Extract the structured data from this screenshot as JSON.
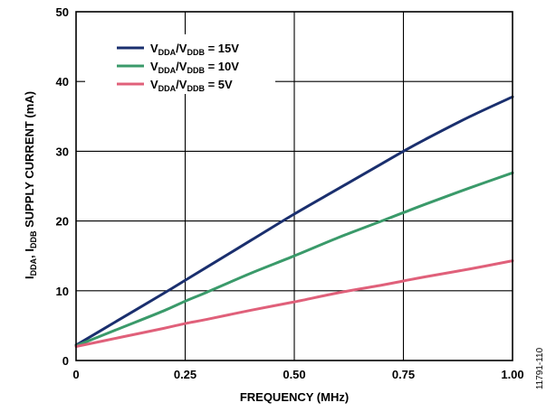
{
  "chart_data": {
    "type": "line",
    "title": "",
    "xlabel": "FREQUENCY (MHz)",
    "ylabel": {
      "parts": [
        {
          "text": "I",
          "sub": "DDA"
        },
        {
          "text": ", I",
          "sub": "DDB"
        },
        {
          "text": " SUPPLY CURRENT (mA)",
          "sub": ""
        }
      ]
    },
    "xlim": [
      0,
      1.0
    ],
    "ylim": [
      0,
      50
    ],
    "x_ticks": [
      "0",
      "0.25",
      "0.50",
      "0.75",
      "1.00"
    ],
    "x_tick_values": [
      0,
      0.25,
      0.5,
      0.75,
      1.0
    ],
    "y_ticks": [
      "0",
      "10",
      "20",
      "30",
      "40",
      "50"
    ],
    "y_tick_values": [
      0,
      10,
      20,
      30,
      40,
      50
    ],
    "grid": true,
    "legend_position": "top-left",
    "figure_id": "11791-110",
    "series": [
      {
        "legend": [
          {
            "text": "V",
            "sub": "DDA"
          },
          {
            "text": "/V",
            "sub": "DDB"
          },
          {
            "text": " = 15V",
            "sub": ""
          }
        ],
        "color": "#1a2f6e",
        "x": [
          0,
          0.1,
          0.2,
          0.25,
          0.3,
          0.4,
          0.5,
          0.6,
          0.7,
          0.75,
          0.8,
          0.9,
          1.0
        ],
        "y": [
          2.2,
          5.9,
          9.6,
          11.5,
          13.4,
          17.2,
          21.0,
          24.6,
          28.2,
          30.0,
          31.7,
          34.9,
          37.8
        ]
      },
      {
        "legend": [
          {
            "text": "V",
            "sub": "DDA"
          },
          {
            "text": "/V",
            "sub": "DDB"
          },
          {
            "text": " = 10V",
            "sub": ""
          }
        ],
        "color": "#3a9a6a",
        "x": [
          0,
          0.1,
          0.2,
          0.25,
          0.3,
          0.4,
          0.5,
          0.6,
          0.7,
          0.75,
          0.8,
          0.9,
          1.0
        ],
        "y": [
          2.1,
          4.6,
          7.1,
          8.5,
          9.8,
          12.5,
          15.0,
          17.6,
          20.0,
          21.2,
          22.4,
          24.7,
          26.9
        ]
      },
      {
        "legend": [
          {
            "text": "V",
            "sub": "DDA"
          },
          {
            "text": "/V",
            "sub": "DDB"
          },
          {
            "text": " = 5V",
            "sub": ""
          }
        ],
        "color": "#e0607a",
        "x": [
          0,
          0.1,
          0.2,
          0.25,
          0.3,
          0.4,
          0.5,
          0.6,
          0.7,
          0.75,
          0.8,
          0.9,
          1.0
        ],
        "y": [
          2.0,
          3.3,
          4.6,
          5.3,
          5.9,
          7.2,
          8.4,
          9.7,
          10.8,
          11.4,
          12.0,
          13.1,
          14.3
        ]
      }
    ]
  }
}
